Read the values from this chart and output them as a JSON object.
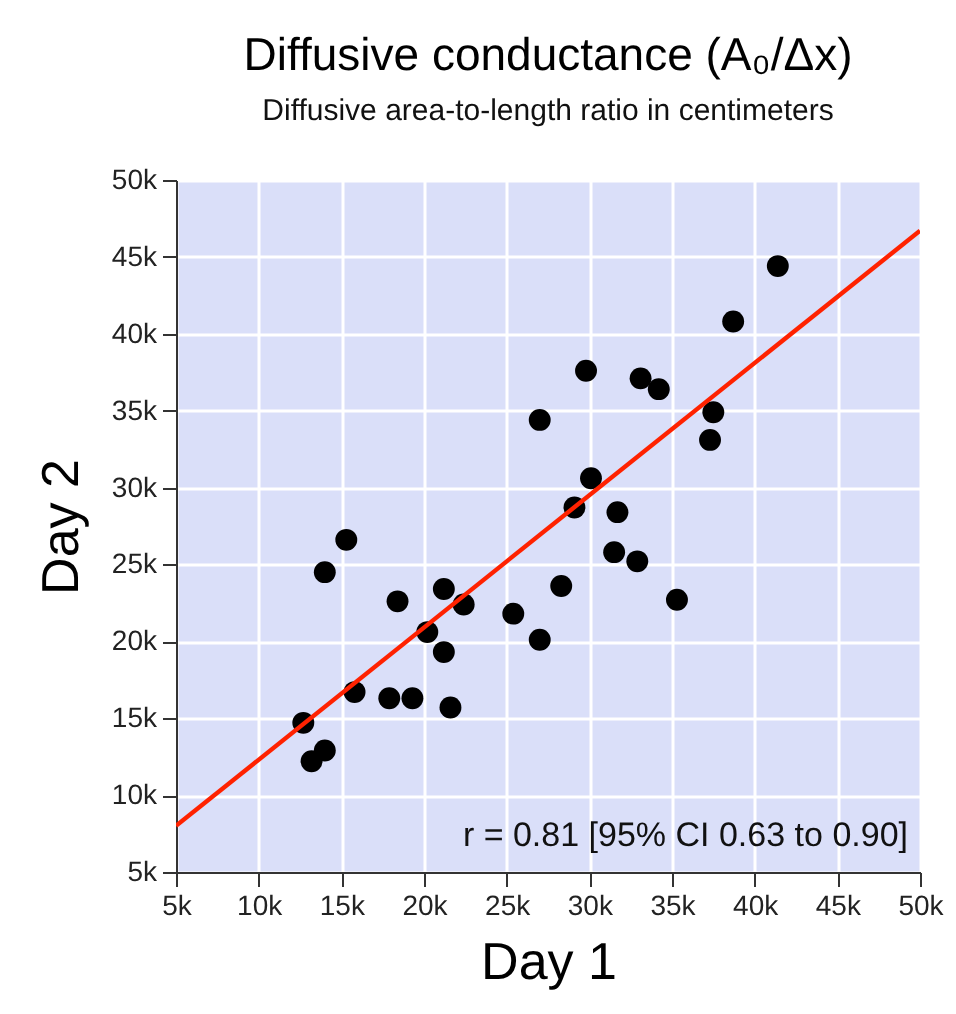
{
  "chart_data": {
    "type": "scatter",
    "title": "Diffusive conductance (A₀/Δx)",
    "subtitle": "Diffusive area-to-length ratio in centimeters",
    "xlabel": "Day 1",
    "ylabel": "Day 2",
    "annotations": [
      "r = 0.81 [95% CI 0.63 to 0.90]"
    ],
    "xlim": [
      5000,
      50000
    ],
    "ylim": [
      5000,
      50000
    ],
    "xticks": [
      {
        "value": 5000,
        "label": "5k"
      },
      {
        "value": 10000,
        "label": "10k"
      },
      {
        "value": 15000,
        "label": "15k"
      },
      {
        "value": 20000,
        "label": "20k"
      },
      {
        "value": 25000,
        "label": "25k"
      },
      {
        "value": 30000,
        "label": "30k"
      },
      {
        "value": 35000,
        "label": "35k"
      },
      {
        "value": 40000,
        "label": "40k"
      },
      {
        "value": 45000,
        "label": "45k"
      },
      {
        "value": 50000,
        "label": "50k"
      }
    ],
    "yticks": [
      {
        "value": 5000,
        "label": "5k"
      },
      {
        "value": 10000,
        "label": "10k"
      },
      {
        "value": 15000,
        "label": "15k"
      },
      {
        "value": 20000,
        "label": "20k"
      },
      {
        "value": 25000,
        "label": "25k"
      },
      {
        "value": 30000,
        "label": "30k"
      },
      {
        "value": 35000,
        "label": "35k"
      },
      {
        "value": 40000,
        "label": "40k"
      },
      {
        "value": 45000,
        "label": "45k"
      },
      {
        "value": 50000,
        "label": "50k"
      }
    ],
    "grid": true,
    "series": [
      {
        "type": "scatter",
        "marker": "circle",
        "color": "#000000",
        "x": [
          27000,
          15300,
          14000,
          18400,
          21200,
          22400,
          20200,
          21200,
          25400,
          27000,
          15800,
          17900,
          19300,
          21600,
          12700,
          14000,
          13200,
          28300,
          29800,
          33100,
          34200,
          38700,
          41400,
          37500,
          37300,
          30100,
          29100,
          31700,
          31500,
          32900,
          35300
        ],
        "values": [
          34400,
          26600,
          24500,
          22600,
          23400,
          22400,
          20600,
          19300,
          21800,
          20100,
          16700,
          16300,
          16300,
          15700,
          14700,
          12900,
          12200,
          23600,
          37600,
          37100,
          36400,
          40800,
          44400,
          34900,
          33100,
          30600,
          28700,
          28400,
          25800,
          25200,
          22700
        ]
      },
      {
        "type": "line",
        "color": "#ff2200",
        "x": [
          5000,
          50000
        ],
        "values": [
          8000,
          46700
        ]
      }
    ]
  }
}
